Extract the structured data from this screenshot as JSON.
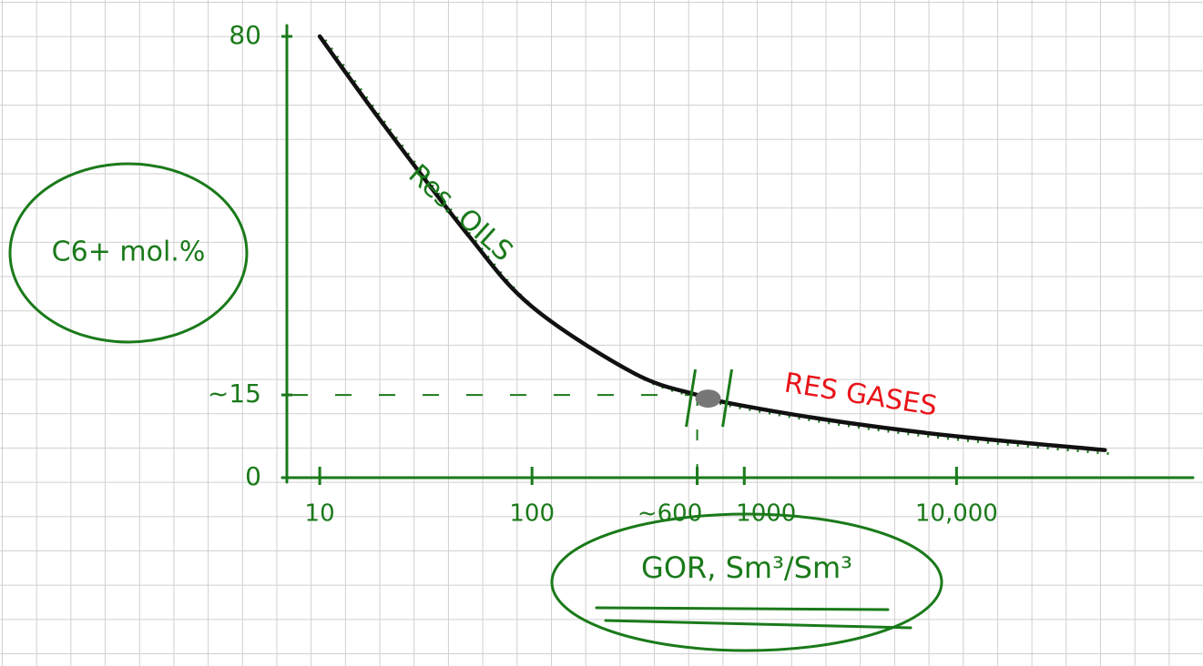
{
  "chart_data": {
    "type": "line",
    "y_label": "C6+ mol.%",
    "x_label": "GOR, Sm³/Sm³",
    "annotations": [
      {
        "text": "Res. OILS",
        "color": "#1a7a1a"
      },
      {
        "text": "RES GASES",
        "color": "#e8141a"
      }
    ],
    "x": [
      10,
      20,
      50,
      100,
      300,
      600,
      1000,
      3000,
      10000,
      50000
    ],
    "values": [
      80,
      64,
      44,
      31,
      19,
      15,
      13,
      10,
      7.5,
      5
    ],
    "color": "#111111",
    "axis_color": "#1a7a1a",
    "log_x": true,
    "xlim": [
      7,
      130000
    ],
    "xticks": [
      10,
      100,
      {
        "value": 600,
        "label": "~600"
      },
      1000,
      {
        "value": 10000,
        "label": "10,000"
      }
    ],
    "ylim": [
      0,
      80
    ],
    "yticks": [
      0,
      {
        "value": 15,
        "label": "~15"
      },
      80
    ],
    "grid": false
  }
}
